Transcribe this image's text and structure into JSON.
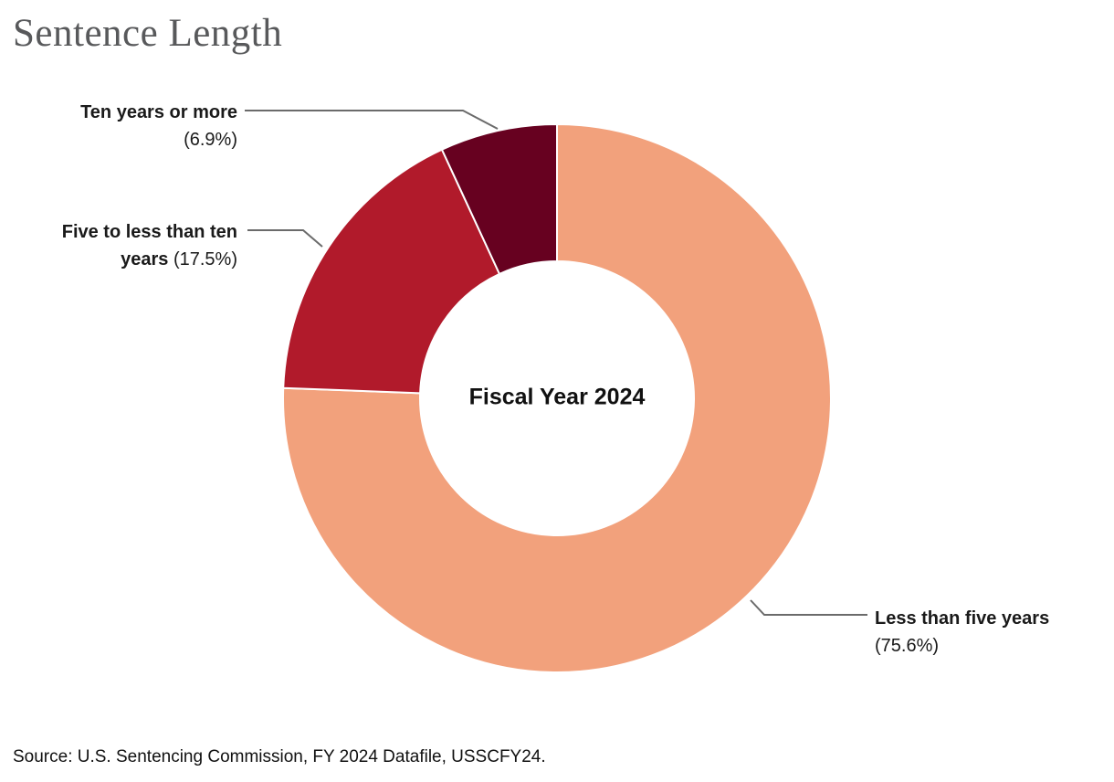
{
  "title": "Sentence Length",
  "source": "Source: U.S. Sentencing Commission, FY 2024 Datafile, USSCFY24.",
  "center_label": "Fiscal Year 2024",
  "colors": {
    "title_gray": "#58595B",
    "label_text": "#1a1a1a",
    "leader_line": "#6B6B6B",
    "slice_gap": "#ffffff"
  },
  "chart_data": {
    "type": "pie",
    "subtype": "donut",
    "title": "Sentence Length",
    "center_label": "Fiscal Year 2024",
    "start_angle_deg": -90,
    "direction": "clockwise",
    "inner_radius_ratio": 0.5,
    "legend_position": "none",
    "labels": "outside-with-leader-lines",
    "slices": [
      {
        "label": "Less than five years",
        "value_pct": 75.6,
        "color": "#F2A17C"
      },
      {
        "label": "Five to less than ten years",
        "value_pct": 17.5,
        "color": "#B11A2B"
      },
      {
        "label": "Ten years or more",
        "value_pct": 6.9,
        "color": "#670120"
      }
    ]
  },
  "callouts": {
    "ten_years_or_more": {
      "name": "Ten years or more",
      "pct": "(6.9%)"
    },
    "five_to_less_than_ten": {
      "line1": "Five to less than ten",
      "line2_bold": "years",
      "line2_pct": "(17.5%)"
    },
    "less_than_five": {
      "name": "Less than five years",
      "pct": "(75.6%)"
    }
  }
}
